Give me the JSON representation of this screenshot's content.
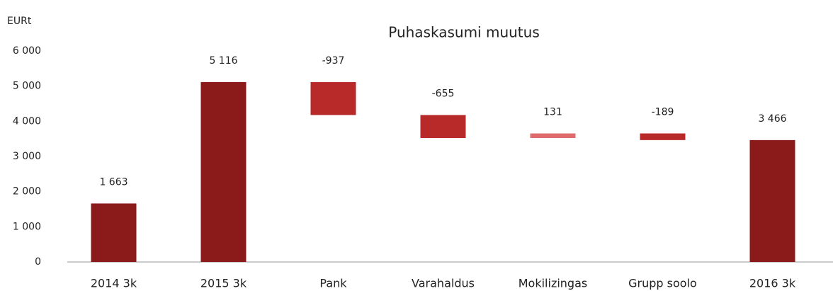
{
  "chart_data": {
    "type": "waterfall",
    "title": "Puhaskasumi muutus",
    "y_label": "EURt",
    "categories": [
      "2014 3k",
      "2015 3k",
      "Pank",
      "Varahaldus",
      "Mokilizingas",
      "Grupp soolo",
      "2016 3k"
    ],
    "values": [
      1663,
      5116,
      -937,
      -655,
      131,
      -189,
      3466
    ],
    "value_labels": [
      "1 663",
      "5 116",
      "-937",
      "-655",
      "131",
      "-189",
      "3 466"
    ],
    "measure": [
      "total",
      "total",
      "relative",
      "relative",
      "relative",
      "relative",
      "total"
    ],
    "colors": [
      "#8b1a1a",
      "#8b1a1a",
      "#b82a2a",
      "#b82a2a",
      "#e06b6b",
      "#b82a2a",
      "#8b1a1a"
    ],
    "ylim": [
      0,
      6000
    ],
    "yticks": [
      0,
      {
        "value": 1000,
        "label": "1 000"
      },
      {
        "value": 2000,
        "label": "2 000"
      },
      {
        "value": 3000,
        "label": "3 000"
      },
      {
        "value": 4000,
        "label": "4 000"
      },
      {
        "value": 5000,
        "label": "5 000"
      },
      {
        "value": 6000,
        "label": "6 000"
      }
    ],
    "grid": false
  }
}
